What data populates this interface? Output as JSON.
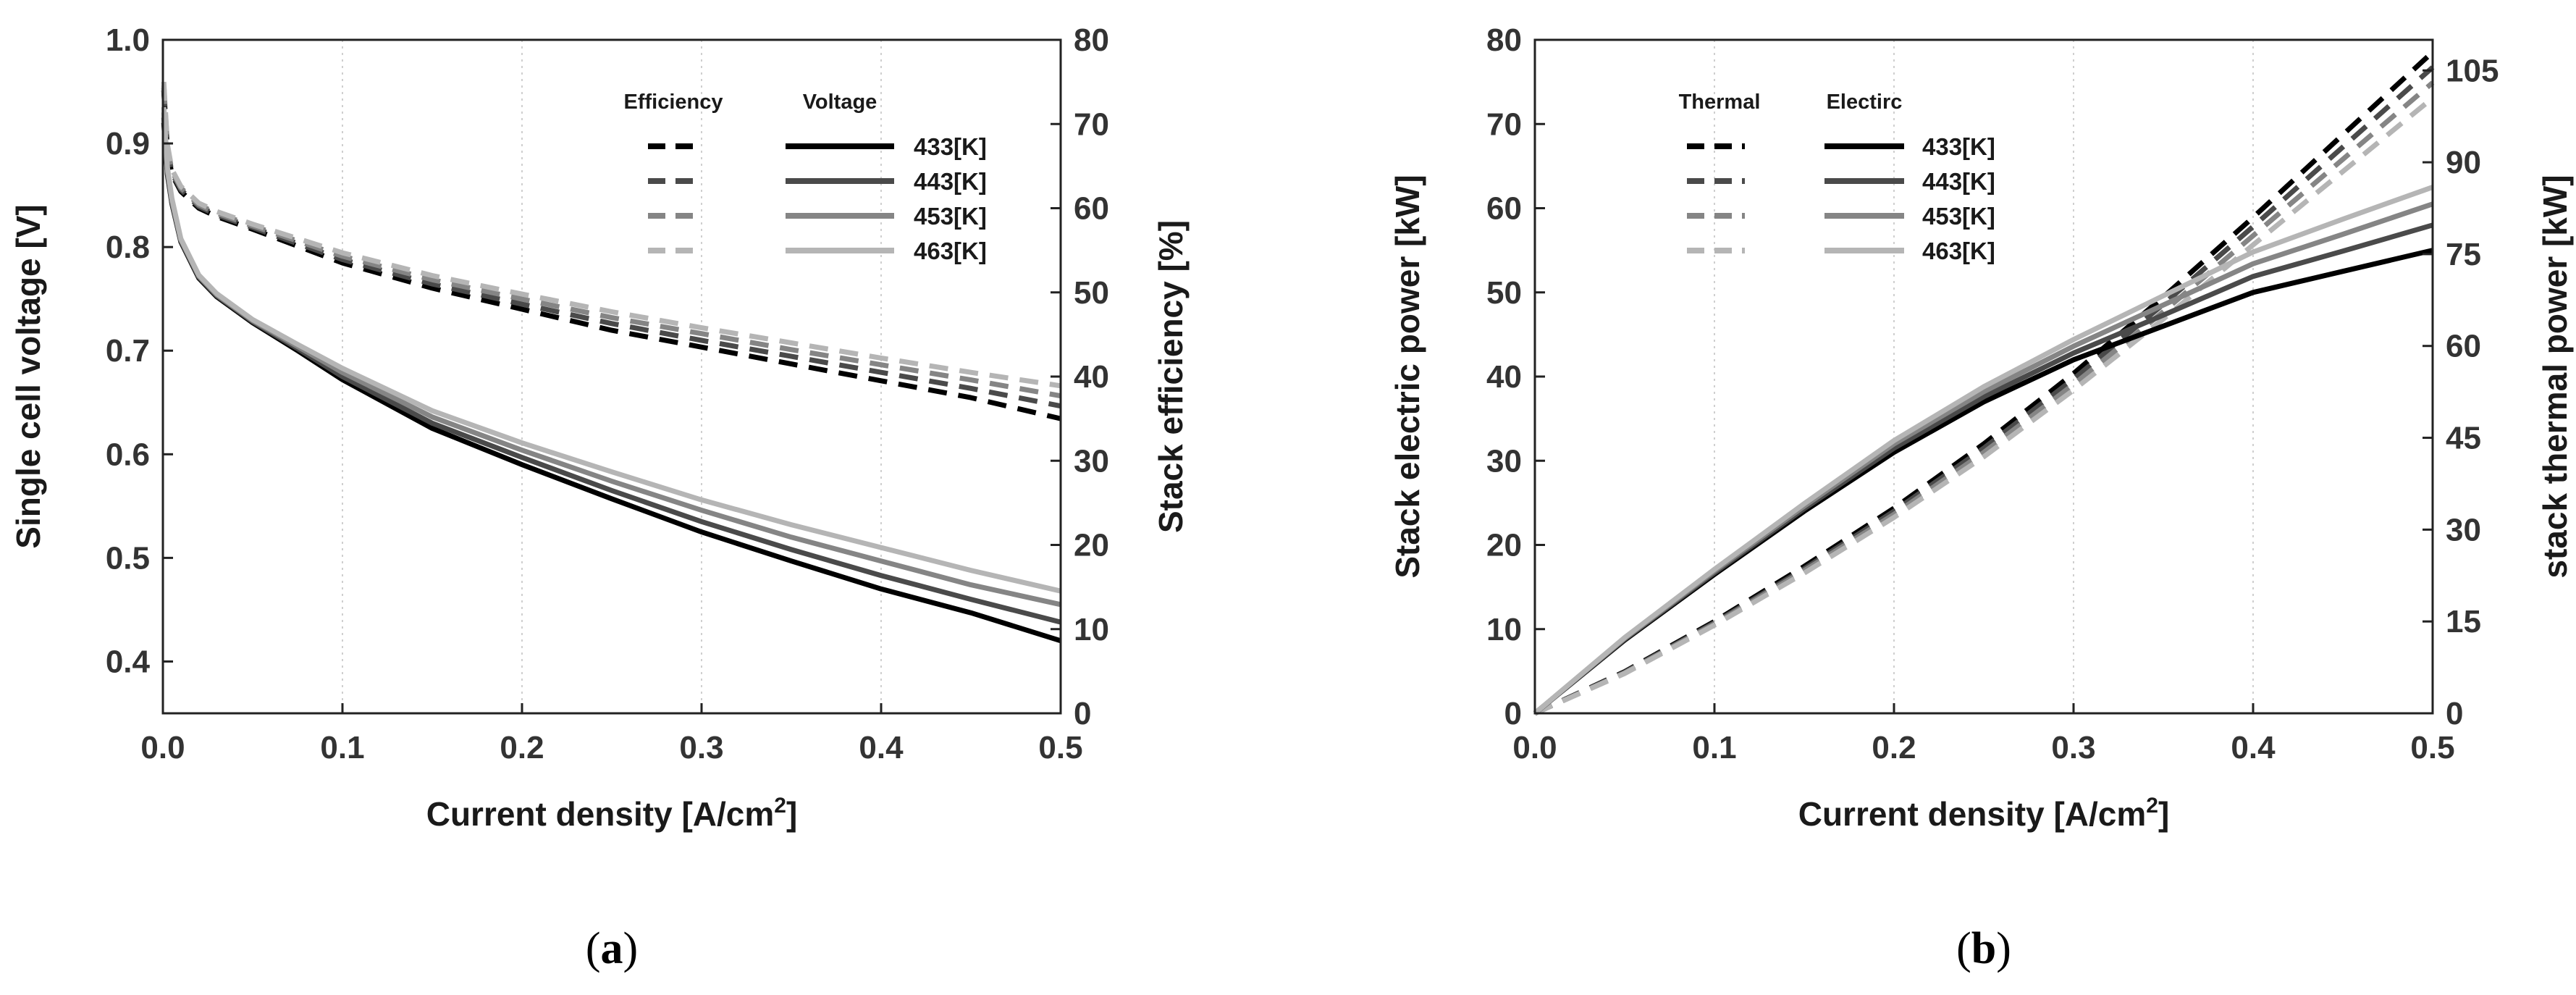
{
  "chart_data": [
    {
      "type": "line",
      "panel_label_open": "(",
      "panel_label_letter": "a",
      "panel_label_close": ")",
      "xlabel_main": "Current density [A/cm",
      "xlabel_sup": "2",
      "xlabel_close": "]",
      "ylabel": "Single cell voltage [V]",
      "ylabel_right": "Stack efficiency [%]",
      "xlim": [
        0.0,
        0.5
      ],
      "ylim": [
        0.35,
        1.0
      ],
      "ylim_right": [
        0,
        80
      ],
      "x_ticks": [
        0.0,
        0.1,
        0.2,
        0.3,
        0.4,
        0.5
      ],
      "x_tick_labels": [
        "0.0",
        "0.1",
        "0.2",
        "0.3",
        "0.4",
        "0.5"
      ],
      "y_ticks": [
        0.4,
        0.5,
        0.6,
        0.7,
        0.8,
        0.9,
        1.0
      ],
      "y_tick_labels": [
        "0.4",
        "0.5",
        "0.6",
        "0.7",
        "0.8",
        "0.9",
        "1.0"
      ],
      "y_right_ticks": [
        0,
        10,
        20,
        30,
        40,
        50,
        60,
        70,
        80
      ],
      "y_right_tick_labels": [
        "0",
        "10",
        "20",
        "30",
        "40",
        "50",
        "60",
        "70",
        "80"
      ],
      "grid": "vertical-dotted",
      "legend_placement": "top-right",
      "legend_heads": [
        "Efficiency",
        "Voltage"
      ],
      "legend_labels": [
        "433[K]",
        "443[K]",
        "453[K]",
        "463[K]"
      ],
      "x": [
        0.0005,
        0.0025,
        0.005,
        0.01,
        0.02,
        0.03,
        0.05,
        0.075,
        0.1,
        0.15,
        0.2,
        0.25,
        0.3,
        0.35,
        0.4,
        0.45,
        0.5
      ],
      "series": [
        {
          "axis": "left",
          "style": "solid",
          "color": "#000000",
          "values": [
            0.92,
            0.87,
            0.842,
            0.805,
            0.77,
            0.752,
            0.727,
            0.7,
            0.672,
            0.625,
            0.59,
            0.557,
            0.525,
            0.497,
            0.47,
            0.447,
            0.42
          ]
        },
        {
          "axis": "left",
          "style": "solid",
          "color": "#4a4a4a",
          "values": [
            0.925,
            0.872,
            0.843,
            0.806,
            0.771,
            0.753,
            0.728,
            0.702,
            0.675,
            0.63,
            0.597,
            0.565,
            0.535,
            0.508,
            0.483,
            0.46,
            0.438
          ]
        },
        {
          "axis": "left",
          "style": "solid",
          "color": "#858585",
          "values": [
            0.93,
            0.874,
            0.845,
            0.807,
            0.772,
            0.754,
            0.729,
            0.704,
            0.679,
            0.636,
            0.604,
            0.574,
            0.546,
            0.52,
            0.497,
            0.474,
            0.455
          ]
        },
        {
          "axis": "left",
          "style": "solid",
          "color": "#b5b5b5",
          "values": [
            0.935,
            0.877,
            0.847,
            0.808,
            0.773,
            0.755,
            0.73,
            0.706,
            0.683,
            0.642,
            0.611,
            0.583,
            0.556,
            0.532,
            0.51,
            0.488,
            0.468
          ]
        },
        {
          "axis": "right",
          "style": "dashed",
          "color": "#000000",
          "values": [
            74,
            67,
            64,
            62,
            60,
            59,
            57.5,
            55.5,
            53.5,
            50.5,
            48,
            45.5,
            43.5,
            41.5,
            39.5,
            37.5,
            35
          ]
        },
        {
          "axis": "right",
          "style": "dashed",
          "color": "#4a4a4a",
          "values": [
            74.3,
            67.2,
            64.2,
            62.2,
            60.2,
            59.2,
            57.7,
            55.8,
            53.9,
            51,
            48.6,
            46.3,
            44.3,
            42.4,
            40.5,
            38.6,
            36.5
          ]
        },
        {
          "axis": "right",
          "style": "dashed",
          "color": "#858585",
          "values": [
            74.6,
            67.4,
            64.4,
            62.4,
            60.4,
            59.4,
            57.9,
            56.1,
            54.3,
            51.5,
            49.2,
            47,
            45.1,
            43.2,
            41.4,
            39.6,
            37.7
          ]
        },
        {
          "axis": "right",
          "style": "dashed",
          "color": "#b5b5b5",
          "values": [
            75,
            67.6,
            64.6,
            62.6,
            60.6,
            59.6,
            58.1,
            56.4,
            54.7,
            52,
            49.8,
            47.7,
            45.8,
            44,
            42.2,
            40.5,
            38.9
          ]
        }
      ]
    },
    {
      "type": "line",
      "panel_label_open": "(",
      "panel_label_letter": "b",
      "panel_label_close": ")",
      "xlabel_main": "Current density [A/cm",
      "xlabel_sup": "2",
      "xlabel_close": "]",
      "ylabel": "Stack electric power [kW]",
      "ylabel_right": "stack thermal power [kW]",
      "xlim": [
        0.0,
        0.5
      ],
      "ylim": [
        0,
        80
      ],
      "ylim_right": [
        0,
        110
      ],
      "x_ticks": [
        0.0,
        0.1,
        0.2,
        0.3,
        0.4,
        0.5
      ],
      "x_tick_labels": [
        "0.0",
        "0.1",
        "0.2",
        "0.3",
        "0.4",
        "0.5"
      ],
      "y_ticks": [
        0,
        10,
        20,
        30,
        40,
        50,
        60,
        70,
        80
      ],
      "y_tick_labels": [
        "0",
        "10",
        "20",
        "30",
        "40",
        "50",
        "60",
        "70",
        "80"
      ],
      "y_right_ticks": [
        0,
        15,
        30,
        45,
        60,
        75,
        90,
        105
      ],
      "y_right_tick_labels": [
        "0",
        "15",
        "30",
        "45",
        "60",
        "75",
        "90",
        "105"
      ],
      "grid": "vertical-dotted",
      "legend_placement": "top-left",
      "legend_heads": [
        "Thermal",
        "Electirc"
      ],
      "legend_labels": [
        "433[K]",
        "443[K]",
        "453[K]",
        "463[K]"
      ],
      "x": [
        0.0,
        0.05,
        0.1,
        0.15,
        0.2,
        0.25,
        0.3,
        0.35,
        0.4,
        0.45,
        0.5
      ],
      "series": [
        {
          "axis": "left",
          "style": "solid",
          "color": "#000000",
          "values": [
            0,
            8.7,
            16.5,
            24,
            31,
            37,
            42,
            46,
            50,
            52.5,
            55
          ]
        },
        {
          "axis": "left",
          "style": "solid",
          "color": "#4a4a4a",
          "values": [
            0,
            8.8,
            16.7,
            24.3,
            31.5,
            37.6,
            42.8,
            47.3,
            51.9,
            54.9,
            58
          ]
        },
        {
          "axis": "left",
          "style": "solid",
          "color": "#858585",
          "values": [
            0,
            8.9,
            16.9,
            24.6,
            32,
            38.2,
            43.6,
            48.5,
            53.4,
            56.9,
            60.5
          ]
        },
        {
          "axis": "left",
          "style": "solid",
          "color": "#b5b5b5",
          "values": [
            0,
            9,
            17.1,
            24.9,
            32.4,
            38.8,
            44.4,
            49.6,
            54.8,
            58.7,
            62.5
          ]
        },
        {
          "axis": "right",
          "style": "dashed",
          "color": "#000000",
          "values": [
            0,
            6.8,
            15,
            24,
            33.5,
            44,
            55.5,
            68,
            81,
            94.5,
            108
          ]
        },
        {
          "axis": "right",
          "style": "dashed",
          "color": "#4a4a4a",
          "values": [
            0,
            6.7,
            14.8,
            23.6,
            33,
            43.3,
            54.6,
            66.8,
            79.5,
            92.5,
            105.5
          ]
        },
        {
          "axis": "right",
          "style": "dashed",
          "color": "#858585",
          "values": [
            0,
            6.6,
            14.6,
            23.3,
            32.5,
            42.6,
            53.7,
            65.6,
            78,
            90.5,
            103
          ]
        },
        {
          "axis": "right",
          "style": "dashed",
          "color": "#b5b5b5",
          "values": [
            0,
            6.5,
            14.4,
            22.9,
            32,
            41.9,
            52.8,
            64.4,
            76.5,
            88.5,
            100.5
          ]
        }
      ]
    }
  ]
}
